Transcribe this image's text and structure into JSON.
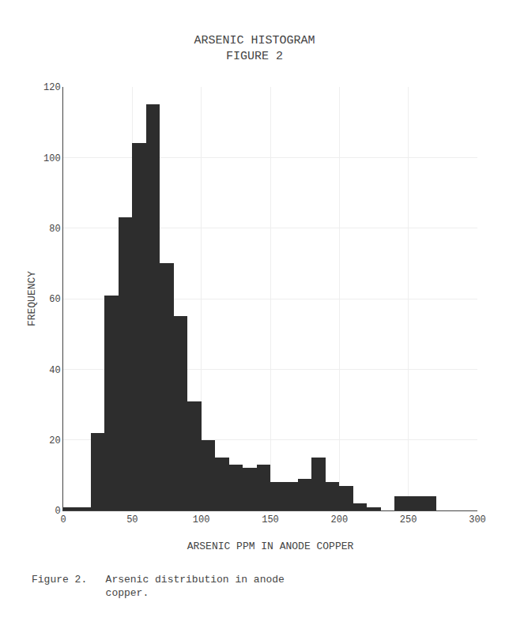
{
  "chart_data": {
    "type": "histogram",
    "title": "ARSENIC HISTOGRAM",
    "subtitle": "FIGURE 2",
    "x_label": "ARSENIC PPM IN ANODE COPPER",
    "y_label": "FREQUENCY",
    "annotations": [
      "Figure 2.   Arsenic distribution in anode",
      "            copper."
    ],
    "bins": [
      0,
      10,
      20,
      30,
      40,
      50,
      60,
      70,
      80,
      90,
      100,
      110,
      120,
      130,
      140,
      150,
      160,
      170,
      180,
      190,
      200,
      210,
      220,
      230,
      240,
      250,
      260,
      270,
      280,
      290,
      300
    ],
    "values": [
      1,
      1,
      22,
      61,
      83,
      104,
      115,
      70,
      55,
      31,
      20,
      15,
      13,
      12,
      13,
      8,
      8,
      9,
      15,
      8,
      7,
      2,
      1,
      0,
      4,
      4,
      4,
      0,
      0,
      0
    ],
    "color": "#2d2d2d",
    "xlim": [
      0,
      300
    ],
    "ylim": [
      0,
      120
    ],
    "xticks": [
      0,
      50,
      100,
      150,
      200,
      250,
      300
    ],
    "yticks": [
      0,
      20,
      40,
      60,
      80,
      100,
      120
    ],
    "grid": true
  }
}
